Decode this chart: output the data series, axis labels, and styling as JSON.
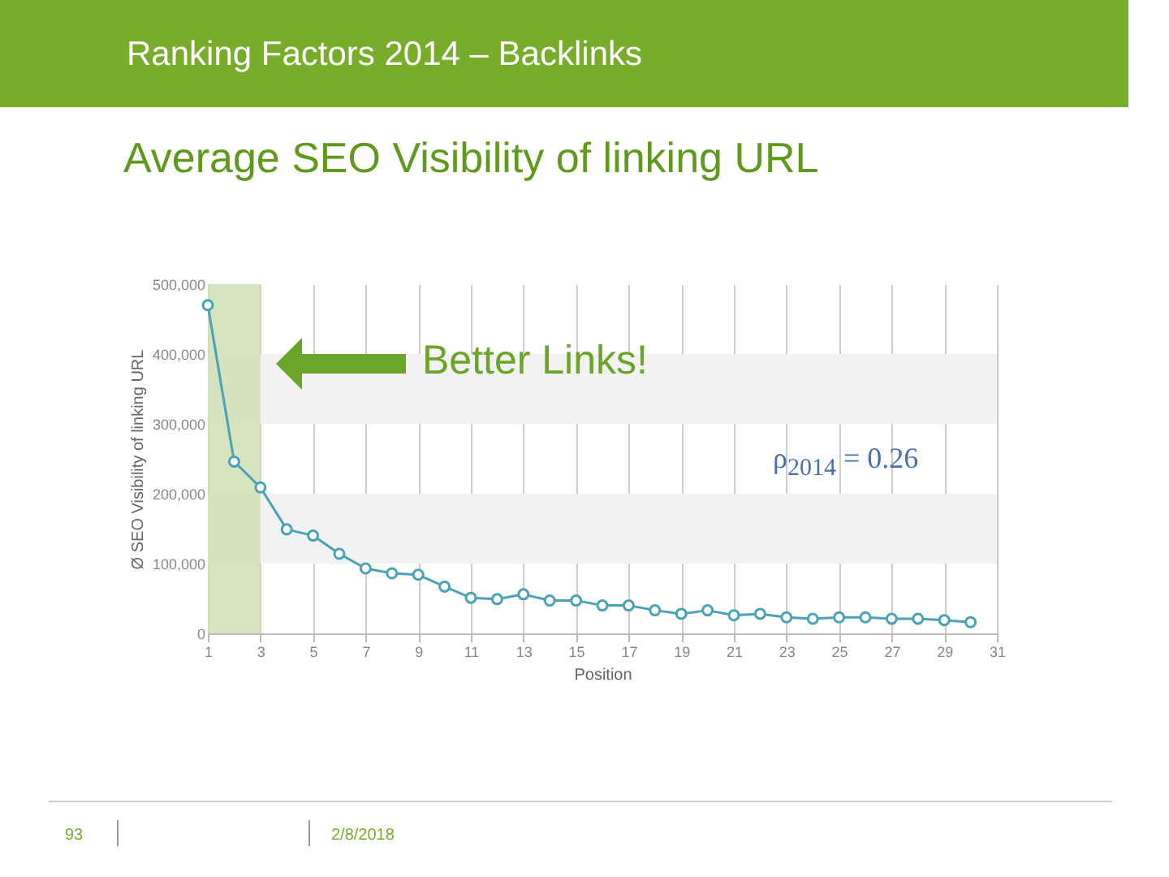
{
  "chart_data": {
    "type": "line",
    "title": "Ranking Factors 2014 – Backlinks",
    "subtitle": "Average SEO Visibility of linking URL",
    "xlabel": "Position",
    "ylabel": "Ø SEO Visibility of linking URL",
    "x": [
      1,
      2,
      3,
      4,
      5,
      6,
      7,
      8,
      9,
      10,
      11,
      12,
      13,
      14,
      15,
      16,
      17,
      18,
      19,
      20,
      21,
      22,
      23,
      24,
      25,
      26,
      27,
      28,
      29,
      30
    ],
    "series": [
      {
        "color": "#4aa3b5",
        "values": [
          470000,
          246000,
          209000,
          149000,
          140000,
          114000,
          93000,
          86000,
          84000,
          67000,
          51000,
          49000,
          56000,
          47000,
          47000,
          40000,
          40000,
          33000,
          28000,
          33000,
          26000,
          28000,
          23000,
          21000,
          23000,
          23000,
          21000,
          21000,
          19000,
          16000
        ]
      }
    ],
    "xlim": [
      1,
      31
    ],
    "xticks": [
      1,
      3,
      5,
      7,
      9,
      11,
      13,
      15,
      17,
      19,
      21,
      23,
      25,
      27,
      29,
      31
    ],
    "ylim": [
      0,
      500000
    ],
    "yticks": [
      {
        "value": 0,
        "label": "0"
      },
      {
        "value": 100000,
        "label": "100,000"
      },
      {
        "value": 200000,
        "label": "200,000"
      },
      {
        "value": 300000,
        "label": "300,000"
      },
      {
        "value": 400000,
        "label": "400,000"
      },
      {
        "value": 500000,
        "label": "500,000"
      }
    ],
    "bands": [
      {
        "axis": "y",
        "from": 300000,
        "to": 400000,
        "color": "#f2f2f2"
      },
      {
        "axis": "y",
        "from": 100000,
        "to": 200000,
        "color": "#f2f2f2"
      },
      {
        "axis": "x",
        "from": 1,
        "to": 3,
        "color": "#cfe0b4"
      }
    ],
    "grid": "x",
    "marker": "circle",
    "line_style": "solid",
    "annotations": [
      "Better Links!",
      "ρ$_{2014}$ = 0.26",
      "93",
      "2/8/2018"
    ]
  }
}
